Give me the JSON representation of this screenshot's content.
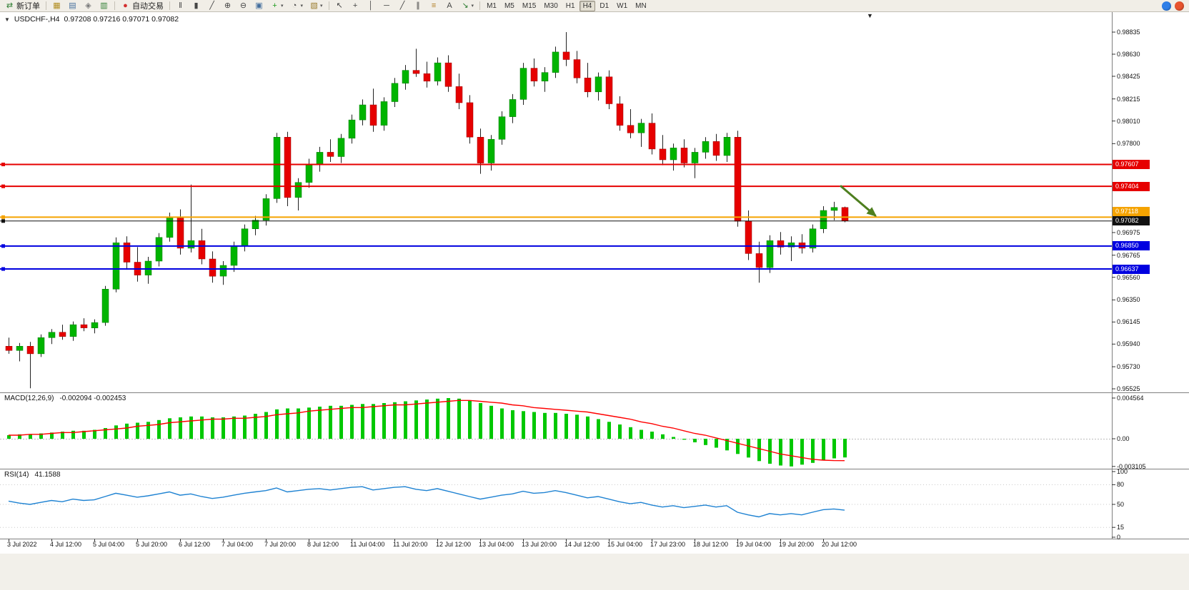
{
  "window": {
    "symbol_period": "USDCHF-,H4",
    "ohlc_text": "0.97208 0.97216 0.97071 0.97082"
  },
  "toolbar": {
    "new_order": {
      "label": "新订单"
    },
    "autotrading": {
      "label": "自动交易"
    },
    "groups": {
      "workspace": [
        {
          "name": "market-watch-icon",
          "glyph": "▦",
          "color": "#b08c1e"
        },
        {
          "name": "data-window-icon",
          "glyph": "▤",
          "color": "#46709e"
        },
        {
          "name": "navigator-icon",
          "glyph": "◈",
          "color": "#7a7a7a"
        },
        {
          "name": "terminal-icon",
          "glyph": "▥",
          "color": "#2e7d32"
        }
      ],
      "chart_controls": [
        {
          "name": "bar-chart-icon",
          "glyph": "‖",
          "color": "#444444"
        },
        {
          "name": "candlestick-chart-icon",
          "glyph": "▮",
          "color": "#444444"
        },
        {
          "name": "line-chart-icon",
          "glyph": "╱",
          "color": "#444444"
        },
        {
          "name": "zoom-in-icon",
          "glyph": "⊕",
          "color": "#444444"
        },
        {
          "name": "zoom-out-icon",
          "glyph": "⊖",
          "color": "#444444"
        },
        {
          "name": "tile-windows-icon",
          "glyph": "▣",
          "color": "#46709e"
        },
        {
          "name": "indicators-icon",
          "glyph": "+",
          "color": "#1c9a1c",
          "dropdown": true
        },
        {
          "name": "periods-icon",
          "glyph": "◔",
          "color": "#444444",
          "dropdown": true
        },
        {
          "name": "templates-icon",
          "glyph": "▧",
          "color": "#9a7b2d",
          "dropdown": true
        }
      ],
      "object_tools": [
        {
          "name": "cursor-icon",
          "glyph": "↖",
          "color": "#444444"
        },
        {
          "name": "crosshair-icon",
          "glyph": "+",
          "color": "#444444"
        },
        {
          "name": "vertical-line-icon",
          "glyph": "│",
          "color": "#444444"
        },
        {
          "name": "horizontal-line-icon",
          "glyph": "─",
          "color": "#444444"
        },
        {
          "name": "trendline-icon",
          "glyph": "╱",
          "color": "#444444"
        },
        {
          "name": "channel-icon",
          "glyph": "∥",
          "color": "#444444"
        },
        {
          "name": "fibonacci-icon",
          "glyph": "≡",
          "color": "#b07c1e"
        },
        {
          "name": "text-icon",
          "glyph": "A",
          "color": "#444444"
        },
        {
          "name": "arrows-icon",
          "glyph": "↘",
          "color": "#2e7d32",
          "dropdown": true
        }
      ]
    },
    "timeframes": [
      "M1",
      "M5",
      "M15",
      "M30",
      "H1",
      "H4",
      "D1",
      "W1",
      "MN"
    ],
    "active_timeframe": "H4"
  },
  "status_icons": [
    {
      "name": "status-blue-icon",
      "color": "#2f7fe8"
    },
    {
      "name": "status-red-icon",
      "color": "#e8542f"
    }
  ],
  "shift_marker_glyph": "▼",
  "collapse_glyph": "▼",
  "chart_data": {
    "type": "candlestick",
    "symbol": "USDCHF",
    "period": "H4",
    "last_ohlc": {
      "open": 0.97208,
      "high": 0.97216,
      "low": 0.97071,
      "close": 0.97082
    },
    "price_axis": {
      "top_price": 0.98835,
      "bottom_price": 0.95525,
      "ticks": [
        "0.98835",
        "0.98630",
        "0.98425",
        "0.98215",
        "0.98010",
        "0.97800",
        "0.96975",
        "0.96765",
        "0.96560",
        "0.96350",
        "0.96145",
        "0.95940",
        "0.95730",
        "0.95525"
      ]
    },
    "time_labels": [
      "3 Jul 2022",
      "4 Jul 12:00",
      "5 Jul 04:00",
      "5 Jul 20:00",
      "6 Jul 12:00",
      "7 Jul 04:00",
      "7 Jul 20:00",
      "8 Jul 12:00",
      "11 Jul 04:00",
      "11 Jul 20:00",
      "12 Jul 12:00",
      "13 Jul 04:00",
      "13 Jul 20:00",
      "14 Jul 12:00",
      "15 Jul 04:00",
      "17 Jul 23:00",
      "18 Jul 12:00",
      "19 Jul 04:00",
      "19 Jul 20:00",
      "20 Jul 12:00"
    ],
    "candles_ohlc": [
      [
        0.9592,
        0.96,
        0.9585,
        0.9588
      ],
      [
        0.9588,
        0.9595,
        0.9578,
        0.9592
      ],
      [
        0.9592,
        0.9596,
        0.9553,
        0.9585
      ],
      [
        0.9585,
        0.9603,
        0.9582,
        0.96
      ],
      [
        0.96,
        0.9608,
        0.9594,
        0.9605
      ],
      [
        0.9605,
        0.9612,
        0.9598,
        0.9601
      ],
      [
        0.9601,
        0.9615,
        0.9597,
        0.9612
      ],
      [
        0.9612,
        0.9618,
        0.9606,
        0.9609
      ],
      [
        0.9609,
        0.9617,
        0.9604,
        0.9614
      ],
      [
        0.9614,
        0.9648,
        0.9611,
        0.9645
      ],
      [
        0.9645,
        0.9693,
        0.9642,
        0.9688
      ],
      [
        0.9688,
        0.9694,
        0.9663,
        0.967
      ],
      [
        0.967,
        0.9684,
        0.9652,
        0.9658
      ],
      [
        0.9658,
        0.9675,
        0.965,
        0.9671
      ],
      [
        0.9671,
        0.9697,
        0.9666,
        0.9693
      ],
      [
        0.9693,
        0.9716,
        0.9689,
        0.9711
      ],
      [
        0.9711,
        0.9719,
        0.9677,
        0.9683
      ],
      [
        0.9683,
        0.9742,
        0.9679,
        0.969
      ],
      [
        0.969,
        0.9701,
        0.9668,
        0.9673
      ],
      [
        0.9673,
        0.968,
        0.9651,
        0.9657
      ],
      [
        0.9657,
        0.9671,
        0.9649,
        0.9667
      ],
      [
        0.9667,
        0.9689,
        0.9661,
        0.9685
      ],
      [
        0.9685,
        0.9705,
        0.968,
        0.9701
      ],
      [
        0.9701,
        0.9713,
        0.9695,
        0.9709
      ],
      [
        0.9709,
        0.9733,
        0.9704,
        0.9729
      ],
      [
        0.9729,
        0.979,
        0.9725,
        0.9786
      ],
      [
        0.9786,
        0.9791,
        0.9722,
        0.973
      ],
      [
        0.973,
        0.9748,
        0.9718,
        0.9744
      ],
      [
        0.9744,
        0.9766,
        0.9739,
        0.9761
      ],
      [
        0.9761,
        0.9777,
        0.9754,
        0.9772
      ],
      [
        0.9772,
        0.9784,
        0.9763,
        0.9768
      ],
      [
        0.9768,
        0.9789,
        0.9762,
        0.9785
      ],
      [
        0.9785,
        0.9807,
        0.978,
        0.9802
      ],
      [
        0.9802,
        0.9821,
        0.9797,
        0.9816
      ],
      [
        0.9816,
        0.9831,
        0.9791,
        0.9797
      ],
      [
        0.9797,
        0.9823,
        0.9792,
        0.9819
      ],
      [
        0.9819,
        0.9841,
        0.9814,
        0.9836
      ],
      [
        0.9836,
        0.9853,
        0.983,
        0.9848
      ],
      [
        0.9848,
        0.9868,
        0.9842,
        0.9845
      ],
      [
        0.9845,
        0.9856,
        0.9832,
        0.9838
      ],
      [
        0.9838,
        0.986,
        0.9834,
        0.9855
      ],
      [
        0.9855,
        0.9862,
        0.9828,
        0.9833
      ],
      [
        0.9833,
        0.9845,
        0.9812,
        0.9818
      ],
      [
        0.9818,
        0.9825,
        0.978,
        0.9786
      ],
      [
        0.9786,
        0.9794,
        0.9752,
        0.9762
      ],
      [
        0.9762,
        0.9788,
        0.9755,
        0.9784
      ],
      [
        0.9784,
        0.981,
        0.9779,
        0.9805
      ],
      [
        0.9805,
        0.9826,
        0.9799,
        0.9821
      ],
      [
        0.9821,
        0.9855,
        0.9816,
        0.985
      ],
      [
        0.985,
        0.9859,
        0.9833,
        0.9838
      ],
      [
        0.9838,
        0.9851,
        0.9828,
        0.9846
      ],
      [
        0.9846,
        0.987,
        0.9841,
        0.9865
      ],
      [
        0.9865,
        0.98835,
        0.9852,
        0.9858
      ],
      [
        0.9858,
        0.9866,
        0.9836,
        0.9841
      ],
      [
        0.9841,
        0.9855,
        0.9823,
        0.9828
      ],
      [
        0.9828,
        0.9846,
        0.982,
        0.9842
      ],
      [
        0.9842,
        0.9848,
        0.9812,
        0.9817
      ],
      [
        0.9817,
        0.9824,
        0.9792,
        0.9797
      ],
      [
        0.9797,
        0.9812,
        0.9785,
        0.979
      ],
      [
        0.979,
        0.9803,
        0.9777,
        0.9799
      ],
      [
        0.9799,
        0.9808,
        0.977,
        0.9775
      ],
      [
        0.9775,
        0.9788,
        0.976,
        0.9765
      ],
      [
        0.9765,
        0.978,
        0.9755,
        0.9776
      ],
      [
        0.9776,
        0.9784,
        0.9758,
        0.9762
      ],
      [
        0.9762,
        0.9776,
        0.9748,
        0.9772
      ],
      [
        0.9772,
        0.9786,
        0.9766,
        0.9782
      ],
      [
        0.9782,
        0.9789,
        0.9764,
        0.9769
      ],
      [
        0.9769,
        0.979,
        0.9763,
        0.9786
      ],
      [
        0.9786,
        0.9792,
        0.9703,
        0.9708
      ],
      [
        0.9708,
        0.9718,
        0.9672,
        0.9678
      ],
      [
        0.9678,
        0.9689,
        0.9651,
        0.9665
      ],
      [
        0.9665,
        0.9695,
        0.966,
        0.969
      ],
      [
        0.969,
        0.9698,
        0.9677,
        0.9684
      ],
      [
        0.9684,
        0.9694,
        0.9671,
        0.9688
      ],
      [
        0.9688,
        0.9696,
        0.9678,
        0.9683
      ],
      [
        0.9683,
        0.9705,
        0.9679,
        0.9701
      ],
      [
        0.9701,
        0.9722,
        0.9697,
        0.9718
      ],
      [
        0.9718,
        0.9726,
        0.9709,
        0.97208
      ],
      [
        0.97208,
        0.97216,
        0.97071,
        0.97082
      ]
    ],
    "hlines": [
      {
        "price": 0.97607,
        "label": "0.97607",
        "color": "#e60000",
        "width": 2,
        "name": "resistance-line-1"
      },
      {
        "price": 0.97404,
        "label": "0.97404",
        "color": "#e60000",
        "width": 2,
        "name": "resistance-line-2"
      },
      {
        "price": 0.97118,
        "label": "0.97118",
        "color": "#f5a300",
        "width": 2,
        "name": "pivot-line"
      },
      {
        "price": 0.97082,
        "label": "0.97082",
        "color": "#111111",
        "width": 1,
        "name": "bid-price-line"
      },
      {
        "price": 0.9685,
        "label": "0.96850",
        "color": "#0000e0",
        "width": 2,
        "name": "support-line-1"
      },
      {
        "price": 0.96637,
        "label": "0.96637",
        "color": "#0000e0",
        "width": 2,
        "name": "support-line-2"
      }
    ],
    "arrow_annotation": {
      "from_index": 77.6,
      "from_price": 0.9741,
      "to_index": 80.9,
      "to_price": 0.9713,
      "color": "#4e7f1f"
    },
    "colors": {
      "bull": "#00b400",
      "bear": "#e60000",
      "wick": "#222222",
      "macd_hist": "#00c800",
      "macd_signal": "#ff0000",
      "rsi_line": "#1e82d2"
    },
    "macd": {
      "label": "MACD(12,26,9)",
      "values_text": "-0.002094 -0.002453",
      "scale_labels": [
        "0.004564",
        "0.00",
        "-0.003105"
      ],
      "histogram": [
        0.0004,
        0.0005,
        0.0005,
        0.0006,
        0.0007,
        0.0008,
        0.0009,
        0.0009,
        0.001,
        0.0012,
        0.0015,
        0.0017,
        0.0018,
        0.0019,
        0.0021,
        0.0023,
        0.0024,
        0.0025,
        0.0025,
        0.0024,
        0.0024,
        0.0025,
        0.0026,
        0.0028,
        0.003,
        0.0033,
        0.0034,
        0.0034,
        0.0035,
        0.0036,
        0.0037,
        0.0037,
        0.0038,
        0.0039,
        0.0039,
        0.004,
        0.0041,
        0.0042,
        0.0043,
        0.0044,
        0.0045,
        0.004564,
        0.0045,
        0.0043,
        0.004,
        0.0037,
        0.0034,
        0.0032,
        0.0031,
        0.003,
        0.0029,
        0.0029,
        0.0028,
        0.0027,
        0.0025,
        0.0022,
        0.0019,
        0.0016,
        0.0013,
        0.001,
        0.0008,
        0.0005,
        0.0002,
        -0.0001,
        -0.0004,
        -0.0007,
        -0.001,
        -0.0013,
        -0.0017,
        -0.0021,
        -0.0025,
        -0.0028,
        -0.003,
        -0.003105,
        -0.0029,
        -0.0027,
        -0.0024,
        -0.0022,
        -0.002094
      ],
      "signal": [
        0.0004,
        0.0004,
        0.0005,
        0.0005,
        0.0006,
        0.0007,
        0.0007,
        0.0008,
        0.0009,
        0.001,
        0.0011,
        0.0012,
        0.0014,
        0.0015,
        0.0016,
        0.0018,
        0.0019,
        0.002,
        0.0021,
        0.0022,
        0.0022,
        0.0023,
        0.0023,
        0.0024,
        0.0025,
        0.0027,
        0.0028,
        0.0029,
        0.0031,
        0.0032,
        0.0033,
        0.0034,
        0.0035,
        0.0035,
        0.0036,
        0.0037,
        0.0038,
        0.0038,
        0.0039,
        0.004,
        0.0041,
        0.0042,
        0.0043,
        0.0043,
        0.0042,
        0.0041,
        0.004,
        0.0038,
        0.0037,
        0.0035,
        0.0034,
        0.0033,
        0.0032,
        0.0031,
        0.003,
        0.0028,
        0.0026,
        0.0024,
        0.0022,
        0.0019,
        0.0017,
        0.0014,
        0.0012,
        0.0009,
        0.0006,
        0.0004,
        0.0001,
        -0.0002,
        -0.0005,
        -0.0008,
        -0.0011,
        -0.0014,
        -0.0017,
        -0.0019,
        -0.0021,
        -0.0023,
        -0.0024,
        -0.00245,
        -0.002453
      ]
    },
    "rsi": {
      "label": "RSI(14)",
      "value_text": "41.1588",
      "scale_labels": [
        "100",
        "80",
        "50",
        "15",
        "0"
      ],
      "levels": [
        80,
        50,
        15
      ],
      "values": [
        55,
        52,
        50,
        53,
        56,
        54,
        58,
        56,
        57,
        62,
        67,
        64,
        61,
        63,
        66,
        69,
        64,
        66,
        62,
        59,
        61,
        64,
        67,
        69,
        71,
        75,
        69,
        71,
        73,
        74,
        72,
        74,
        76,
        77,
        72,
        74,
        76,
        77,
        73,
        71,
        74,
        70,
        66,
        62,
        58,
        61,
        64,
        66,
        70,
        67,
        68,
        71,
        68,
        64,
        60,
        62,
        58,
        54,
        51,
        53,
        49,
        46,
        48,
        45,
        47,
        49,
        46,
        48,
        38,
        34,
        31,
        36,
        34,
        36,
        34,
        38,
        42,
        43,
        41.16
      ]
    }
  }
}
